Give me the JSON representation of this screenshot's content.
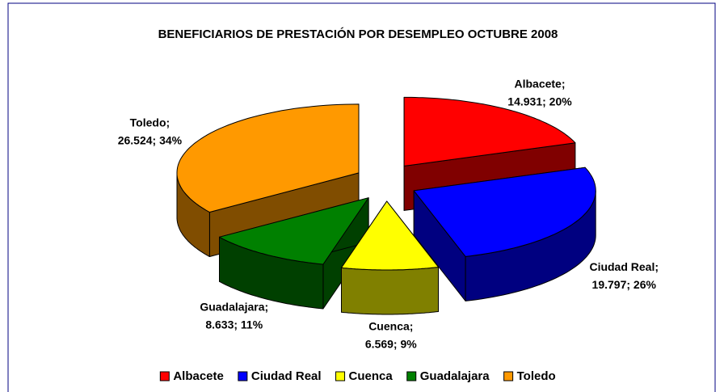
{
  "chart_data": {
    "type": "pie3d",
    "title": "BENEFICIARIOS DE PRESTACIÓN POR DESEMPLEO OCTUBRE 2008",
    "categories": [
      "Albacete",
      "Ciudad Real",
      "Cuenca",
      "Guadalajara",
      "Toledo"
    ],
    "values": [
      14931,
      19797,
      6569,
      8633,
      26524
    ],
    "value_labels": [
      [
        "Albacete;",
        "14.931; 20%"
      ],
      [
        "Ciudad Real;",
        "19.797; 26%"
      ],
      [
        "Cuenca;",
        "6.569; 9%"
      ],
      [
        "Guadalajara;",
        "8.633; 11%"
      ],
      [
        "Toledo;",
        "26.524; 34%"
      ]
    ],
    "colors": [
      "#ff0000",
      "#0000ff",
      "#ffff00",
      "#008000",
      "#ff9900"
    ],
    "legend": "bottom"
  }
}
